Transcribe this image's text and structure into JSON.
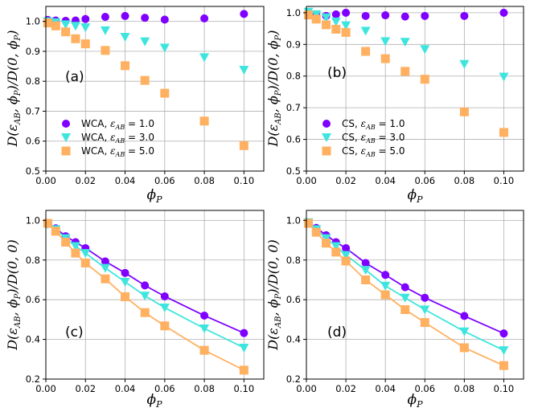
{
  "figure": {
    "colors": {
      "eps1": "#7f00ff",
      "eps3": "#3ee5de",
      "eps5": "#ffb060",
      "grid": "#b0b0b0"
    }
  },
  "chart_data": [
    {
      "panel": "(a)",
      "type": "scatter",
      "xlabel": "ϕ_P",
      "ylabel": "D(ε_AB, ϕ_P)/D(0, ϕ_P)",
      "xlim": [
        0,
        0.11
      ],
      "ylim": [
        0.5,
        1.05
      ],
      "xticks": [
        0.0,
        0.02,
        0.04,
        0.06,
        0.08,
        0.1
      ],
      "xtick_labels": [
        "0.00",
        "0.02",
        "0.04",
        "0.06",
        "0.08",
        "0.10"
      ],
      "yticks": [
        0.5,
        0.6,
        0.7,
        0.8,
        0.9,
        1.0
      ],
      "ytick_labels": [
        "0.5",
        "0.6",
        "0.7",
        "0.8",
        "0.9",
        "1.0"
      ],
      "legend": "lower-left",
      "series": [
        {
          "name": "WCA, ε_AB = 1.0",
          "legend_prefix": "WCA,",
          "legend_eps": "ε",
          "legend_sub": "AB",
          "legend_value": "= 1.0",
          "marker": "circle",
          "color": "#7f00ff",
          "x": [
            0.001,
            0.005,
            0.01,
            0.015,
            0.02,
            0.03,
            0.04,
            0.05,
            0.06,
            0.08,
            0.1
          ],
          "y": [
            1.005,
            1.003,
            1.002,
            1.003,
            1.008,
            1.015,
            1.018,
            1.012,
            1.006,
            1.01,
            1.025
          ]
        },
        {
          "name": "WCA, ε_AB = 3.0",
          "legend_prefix": "WCA,",
          "legend_eps": "ε",
          "legend_sub": "AB",
          "legend_value": "= 3.0",
          "marker": "triangle-down",
          "color": "#3ee5de",
          "x": [
            0.001,
            0.005,
            0.01,
            0.015,
            0.02,
            0.03,
            0.04,
            0.05,
            0.06,
            0.08,
            0.1
          ],
          "y": [
            1.0,
            0.997,
            0.99,
            0.985,
            0.98,
            0.97,
            0.948,
            0.933,
            0.912,
            0.88,
            0.838
          ]
        },
        {
          "name": "WCA, ε_AB = 5.0",
          "legend_prefix": "WCA,",
          "legend_eps": "ε",
          "legend_sub": "AB",
          "legend_value": "= 5.0",
          "marker": "square",
          "color": "#ffb060",
          "x": [
            0.001,
            0.005,
            0.01,
            0.015,
            0.02,
            0.03,
            0.04,
            0.05,
            0.06,
            0.08,
            0.1
          ],
          "y": [
            0.995,
            0.985,
            0.965,
            0.942,
            0.925,
            0.903,
            0.852,
            0.803,
            0.76,
            0.667,
            0.585
          ]
        }
      ]
    },
    {
      "panel": "(b)",
      "type": "scatter",
      "xlabel": "ϕ_P",
      "ylabel": "D(ε_AB, ϕ_P)/D(0, ϕ_P)",
      "xlim": [
        0,
        0.11
      ],
      "ylim": [
        0.5,
        1.02
      ],
      "xticks": [
        0.0,
        0.02,
        0.04,
        0.06,
        0.08,
        0.1
      ],
      "xtick_labels": [
        "0.00",
        "0.02",
        "0.04",
        "0.06",
        "0.08",
        "0.10"
      ],
      "yticks": [
        0.5,
        0.6,
        0.7,
        0.8,
        0.9,
        1.0
      ],
      "ytick_labels": [
        "0.5",
        "0.6",
        "0.7",
        "0.8",
        "0.9",
        "1.0"
      ],
      "legend": "lower-left",
      "series": [
        {
          "name": "CS, ε_AB = 1.0",
          "legend_prefix": "CS,",
          "legend_eps": "ε",
          "legend_sub": "AB",
          "legend_value": "= 1.0",
          "marker": "circle",
          "color": "#7f00ff",
          "x": [
            0.001,
            0.005,
            0.01,
            0.015,
            0.02,
            0.03,
            0.04,
            0.05,
            0.06,
            0.08,
            0.1
          ],
          "y": [
            1.0,
            0.993,
            0.99,
            0.995,
            1.0,
            0.99,
            0.992,
            0.988,
            0.99,
            0.99,
            1.0
          ]
        },
        {
          "name": "CS, ε_AB = 3.0",
          "legend_prefix": "CS,",
          "legend_eps": "ε",
          "legend_sub": "AB",
          "legend_value": "= 3.0",
          "marker": "triangle-down",
          "color": "#3ee5de",
          "x": [
            0.001,
            0.005,
            0.01,
            0.015,
            0.02,
            0.03,
            0.04,
            0.05,
            0.06,
            0.08,
            0.1
          ],
          "y": [
            1.003,
            0.995,
            0.985,
            0.972,
            0.96,
            0.943,
            0.91,
            0.908,
            0.885,
            0.838,
            0.798
          ]
        },
        {
          "name": "CS, ε_AB = 5.0",
          "legend_prefix": "CS,",
          "legend_eps": "ε",
          "legend_sub": "AB",
          "legend_value": "= 5.0",
          "marker": "square",
          "color": "#ffb060",
          "x": [
            0.001,
            0.005,
            0.01,
            0.015,
            0.02,
            0.03,
            0.04,
            0.05,
            0.06,
            0.08,
            0.1
          ],
          "y": [
            0.993,
            0.98,
            0.962,
            0.948,
            0.938,
            0.878,
            0.855,
            0.815,
            0.79,
            0.687,
            0.622
          ]
        }
      ]
    },
    {
      "panel": "(c)",
      "type": "scatter+line",
      "xlabel": "ϕ_P",
      "ylabel": "D(ε_AB, ϕ_P)/D(0, 0)",
      "xlim": [
        0,
        0.11
      ],
      "ylim": [
        0.2,
        1.05
      ],
      "xticks": [
        0.0,
        0.02,
        0.04,
        0.06,
        0.08,
        0.1
      ],
      "xtick_labels": [
        "0.00",
        "0.02",
        "0.04",
        "0.06",
        "0.08",
        "0.10"
      ],
      "yticks": [
        0.2,
        0.4,
        0.6,
        0.8,
        1.0
      ],
      "ytick_labels": [
        "0.2",
        "0.4",
        "0.6",
        "0.8",
        "1.0"
      ],
      "series": [
        {
          "name": "ε_AB = 1.0",
          "marker": "circle",
          "color": "#7f00ff",
          "x": [
            0.001,
            0.005,
            0.01,
            0.015,
            0.02,
            0.03,
            0.04,
            0.05,
            0.06,
            0.08,
            0.1
          ],
          "y": [
            0.985,
            0.96,
            0.92,
            0.89,
            0.86,
            0.793,
            0.735,
            0.672,
            0.617,
            0.52,
            0.432
          ]
        },
        {
          "name": "ε_AB = 3.0",
          "marker": "triangle-down",
          "color": "#3ee5de",
          "x": [
            0.001,
            0.005,
            0.01,
            0.015,
            0.02,
            0.03,
            0.04,
            0.05,
            0.06,
            0.08,
            0.1
          ],
          "y": [
            0.98,
            0.955,
            0.91,
            0.87,
            0.835,
            0.76,
            0.69,
            0.62,
            0.56,
            0.455,
            0.358
          ]
        },
        {
          "name": "ε_AB = 5.0",
          "marker": "square",
          "color": "#ffb060",
          "x": [
            0.001,
            0.005,
            0.01,
            0.015,
            0.02,
            0.03,
            0.04,
            0.05,
            0.06,
            0.08,
            0.1
          ],
          "y": [
            0.985,
            0.945,
            0.89,
            0.835,
            0.785,
            0.705,
            0.615,
            0.535,
            0.468,
            0.345,
            0.245
          ]
        }
      ]
    },
    {
      "panel": "(d)",
      "type": "scatter+line",
      "xlabel": "ϕ_P",
      "ylabel": "D(ε_AB, ϕ_P)/D(0, 0)",
      "xlim": [
        0,
        0.11
      ],
      "ylim": [
        0.2,
        1.05
      ],
      "xticks": [
        0.0,
        0.02,
        0.04,
        0.06,
        0.08,
        0.1
      ],
      "xtick_labels": [
        "0.00",
        "0.02",
        "0.04",
        "0.06",
        "0.08",
        "0.10"
      ],
      "yticks": [
        0.2,
        0.4,
        0.6,
        0.8,
        1.0
      ],
      "ytick_labels": [
        "0.2",
        "0.4",
        "0.6",
        "0.8",
        "1.0"
      ],
      "series": [
        {
          "name": "ε_AB = 1.0",
          "marker": "circle",
          "color": "#7f00ff",
          "x": [
            0.001,
            0.005,
            0.01,
            0.015,
            0.02,
            0.03,
            0.04,
            0.05,
            0.06,
            0.08,
            0.1
          ],
          "y": [
            0.99,
            0.962,
            0.925,
            0.89,
            0.86,
            0.785,
            0.725,
            0.663,
            0.61,
            0.518,
            0.43
          ]
        },
        {
          "name": "ε_AB = 3.0",
          "marker": "triangle-down",
          "color": "#3ee5de",
          "x": [
            0.001,
            0.005,
            0.01,
            0.015,
            0.02,
            0.03,
            0.04,
            0.05,
            0.06,
            0.08,
            0.1
          ],
          "y": [
            0.99,
            0.955,
            0.91,
            0.87,
            0.825,
            0.75,
            0.67,
            0.61,
            0.55,
            0.44,
            0.345
          ]
        },
        {
          "name": "ε_AB = 5.0",
          "marker": "square",
          "color": "#ffb060",
          "x": [
            0.001,
            0.005,
            0.01,
            0.015,
            0.02,
            0.03,
            0.04,
            0.05,
            0.06,
            0.08,
            0.1
          ],
          "y": [
            0.985,
            0.94,
            0.885,
            0.84,
            0.795,
            0.7,
            0.625,
            0.55,
            0.485,
            0.358,
            0.268
          ]
        }
      ]
    }
  ]
}
